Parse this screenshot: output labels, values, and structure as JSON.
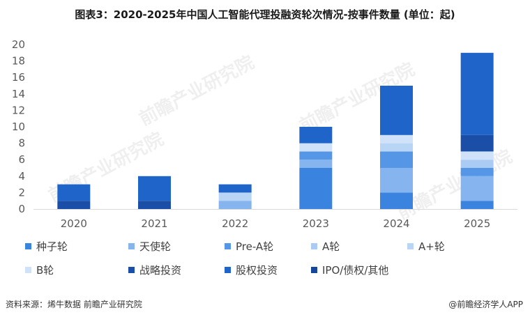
{
  "title": "图表3：2020-2025年中国人工智能代理投融资轮次情况-按事件数量 (单位：起)",
  "source": "资料来源：烯牛数据 前瞻产业研究院",
  "credit": "@前瞻经济学人APP",
  "watermark": "前瞻产业研究院",
  "chart_data": {
    "type": "bar",
    "stacked": true,
    "categories": [
      "2020",
      "2021",
      "2022",
      "2023",
      "2024",
      "2025"
    ],
    "ylim": [
      0,
      20
    ],
    "yticks": [
      0,
      2,
      4,
      6,
      8,
      10,
      12,
      14,
      16,
      18,
      20
    ],
    "grid": false,
    "legend_position": "bottom",
    "series": [
      {
        "name": "种子轮",
        "color": "#3a84e0",
        "values": [
          0,
          0,
          0,
          5,
          2,
          1
        ]
      },
      {
        "name": "天使轮",
        "color": "#86b4ee",
        "values": [
          0,
          0,
          1,
          1,
          3,
          3
        ]
      },
      {
        "name": "Pre-A轮",
        "color": "#5596e6",
        "values": [
          0,
          0,
          0,
          1,
          2,
          1
        ]
      },
      {
        "name": "A轮",
        "color": "#a9cbf4",
        "values": [
          0,
          0,
          0,
          0,
          0,
          1
        ]
      },
      {
        "name": "A+轮",
        "color": "#b9d5f6",
        "values": [
          0,
          0,
          1,
          0,
          1,
          0
        ]
      },
      {
        "name": "B轮",
        "color": "#cfe2f9",
        "values": [
          0,
          0,
          0,
          1,
          1,
          1
        ]
      },
      {
        "name": "战略投资",
        "color": "#1b4ea6",
        "values": [
          1,
          1,
          0,
          0,
          0,
          2
        ]
      },
      {
        "name": "股权投资",
        "color": "#1f64c8",
        "values": [
          2,
          3,
          1,
          2,
          6,
          10
        ]
      },
      {
        "name": "IPO/债权/其他",
        "color": "#17479a",
        "values": [
          0,
          0,
          0,
          0,
          0,
          0
        ]
      }
    ]
  }
}
